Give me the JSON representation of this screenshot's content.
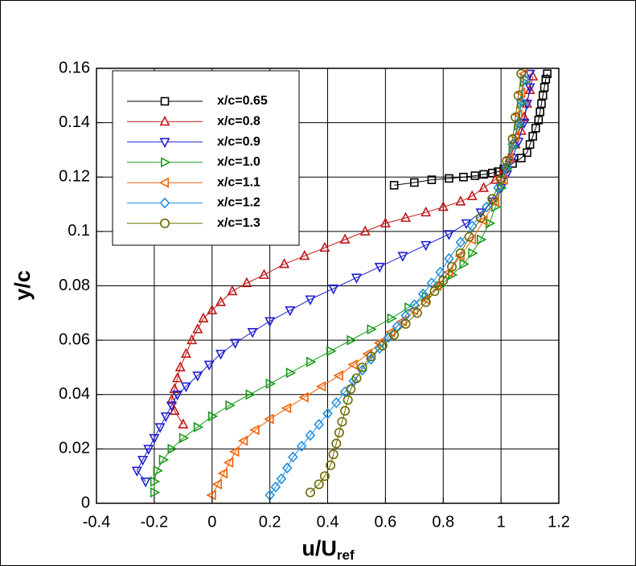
{
  "chart_data": {
    "type": "line",
    "xlabel": "u/U",
    "xlabel_sub": "ref",
    "ylabel": "y/c",
    "xlim": [
      -0.4,
      1.2
    ],
    "xticks": [
      -0.4,
      -0.2,
      0,
      0.2,
      0.4,
      0.6,
      0.8,
      1,
      1.2
    ],
    "ylim": [
      0,
      0.16
    ],
    "yticks": [
      0,
      0.02,
      0.04,
      0.06,
      0.08,
      0.1,
      0.12,
      0.14,
      0.16
    ],
    "grid": true,
    "legend": "upper left",
    "series": [
      {
        "name": "x/c=0.65",
        "color": "#000000",
        "marker": "square",
        "x": [
          0.63,
          0.7,
          0.76,
          0.82,
          0.87,
          0.91,
          0.94,
          0.97,
          0.99,
          1.01,
          1.04,
          1.07,
          1.09,
          1.1,
          1.11,
          1.12,
          1.13,
          1.135,
          1.14,
          1.145,
          1.15,
          1.155,
          1.16
        ],
        "y": [
          0.117,
          0.118,
          0.119,
          0.1195,
          0.12,
          0.1205,
          0.121,
          0.1215,
          0.122,
          0.123,
          0.125,
          0.127,
          0.129,
          0.132,
          0.135,
          0.138,
          0.141,
          0.144,
          0.147,
          0.15,
          0.153,
          0.156,
          0.158
        ]
      },
      {
        "name": "x/c=0.8",
        "color": "#c01818",
        "marker": "triangle-up",
        "x": [
          -0.1,
          -0.13,
          -0.14,
          -0.13,
          -0.12,
          -0.11,
          -0.09,
          -0.07,
          -0.05,
          -0.03,
          0.0,
          0.03,
          0.07,
          0.12,
          0.18,
          0.25,
          0.32,
          0.39,
          0.46,
          0.53,
          0.6,
          0.67,
          0.74,
          0.8,
          0.86,
          0.9,
          0.94,
          0.98,
          1.01,
          1.03,
          1.05,
          1.07,
          1.08,
          1.09,
          1.1,
          1.11
        ],
        "y": [
          0.029,
          0.034,
          0.038,
          0.042,
          0.046,
          0.05,
          0.055,
          0.06,
          0.064,
          0.068,
          0.071,
          0.074,
          0.078,
          0.081,
          0.084,
          0.088,
          0.091,
          0.094,
          0.097,
          0.1,
          0.103,
          0.105,
          0.107,
          0.109,
          0.111,
          0.113,
          0.116,
          0.119,
          0.123,
          0.127,
          0.132,
          0.137,
          0.142,
          0.147,
          0.152,
          0.157
        ]
      },
      {
        "name": "x/c=0.9",
        "color": "#2020d0",
        "marker": "triangle-down",
        "x": [
          -0.23,
          -0.26,
          -0.24,
          -0.22,
          -0.2,
          -0.18,
          -0.16,
          -0.14,
          -0.12,
          -0.09,
          -0.05,
          -0.01,
          0.03,
          0.08,
          0.14,
          0.2,
          0.27,
          0.34,
          0.42,
          0.5,
          0.58,
          0.66,
          0.74,
          0.82,
          0.88,
          0.93,
          0.97,
          1.0,
          1.02,
          1.04,
          1.06,
          1.08,
          1.09,
          1.1,
          1.1
        ],
        "y": [
          0.008,
          0.012,
          0.016,
          0.02,
          0.024,
          0.028,
          0.032,
          0.036,
          0.04,
          0.043,
          0.047,
          0.051,
          0.055,
          0.059,
          0.063,
          0.067,
          0.071,
          0.075,
          0.079,
          0.083,
          0.087,
          0.091,
          0.095,
          0.099,
          0.103,
          0.107,
          0.111,
          0.116,
          0.121,
          0.127,
          0.133,
          0.14,
          0.147,
          0.153,
          0.158
        ]
      },
      {
        "name": "x/c=1.0",
        "color": "#1a9a1a",
        "marker": "triangle-right",
        "x": [
          -0.2,
          -0.2,
          -0.19,
          -0.17,
          -0.14,
          -0.1,
          -0.05,
          0.0,
          0.06,
          0.13,
          0.2,
          0.27,
          0.34,
          0.41,
          0.48,
          0.55,
          0.62,
          0.68,
          0.74,
          0.79,
          0.83,
          0.87,
          0.9,
          0.93,
          0.96,
          0.98,
          1.0,
          1.02,
          1.04,
          1.06,
          1.07,
          1.08
        ],
        "y": [
          0.004,
          0.008,
          0.012,
          0.016,
          0.02,
          0.024,
          0.028,
          0.032,
          0.036,
          0.04,
          0.044,
          0.048,
          0.052,
          0.056,
          0.06,
          0.064,
          0.068,
          0.072,
          0.076,
          0.08,
          0.084,
          0.088,
          0.092,
          0.097,
          0.103,
          0.109,
          0.116,
          0.123,
          0.131,
          0.139,
          0.147,
          0.155
        ]
      },
      {
        "name": "x/c=1.1",
        "color": "#f06000",
        "marker": "triangle-left",
        "x": [
          0.0,
          0.02,
          0.04,
          0.06,
          0.08,
          0.11,
          0.15,
          0.2,
          0.26,
          0.32,
          0.38,
          0.44,
          0.49,
          0.54,
          0.58,
          0.62,
          0.66,
          0.7,
          0.74,
          0.78,
          0.82,
          0.86,
          0.9,
          0.94,
          0.98,
          1.01,
          1.03,
          1.05,
          1.06,
          1.07,
          1.08
        ],
        "y": [
          0.003,
          0.007,
          0.011,
          0.015,
          0.019,
          0.023,
          0.027,
          0.031,
          0.035,
          0.039,
          0.043,
          0.047,
          0.051,
          0.055,
          0.059,
          0.063,
          0.067,
          0.071,
          0.075,
          0.08,
          0.085,
          0.091,
          0.097,
          0.104,
          0.111,
          0.119,
          0.127,
          0.135,
          0.143,
          0.151,
          0.158
        ]
      },
      {
        "name": "x/c=1.2",
        "color": "#1e90e0",
        "marker": "diamond",
        "x": [
          0.2,
          0.22,
          0.24,
          0.26,
          0.28,
          0.31,
          0.34,
          0.37,
          0.4,
          0.43,
          0.46,
          0.49,
          0.52,
          0.55,
          0.58,
          0.61,
          0.64,
          0.67,
          0.7,
          0.73,
          0.76,
          0.79,
          0.82,
          0.86,
          0.9,
          0.95,
          0.99,
          1.02,
          1.04,
          1.06,
          1.07,
          1.08
        ],
        "y": [
          0.003,
          0.006,
          0.009,
          0.013,
          0.017,
          0.021,
          0.025,
          0.029,
          0.033,
          0.037,
          0.041,
          0.045,
          0.049,
          0.053,
          0.057,
          0.061,
          0.065,
          0.069,
          0.073,
          0.077,
          0.081,
          0.085,
          0.09,
          0.096,
          0.102,
          0.109,
          0.116,
          0.124,
          0.132,
          0.14,
          0.148,
          0.156
        ]
      },
      {
        "name": "x/c=1.3",
        "color": "#6b6b00",
        "marker": "circle",
        "x": [
          0.34,
          0.37,
          0.39,
          0.41,
          0.42,
          0.43,
          0.44,
          0.45,
          0.46,
          0.47,
          0.48,
          0.5,
          0.52,
          0.55,
          0.59,
          0.63,
          0.67,
          0.71,
          0.74,
          0.77,
          0.8,
          0.83,
          0.86,
          0.89,
          0.93,
          0.97,
          1.0,
          1.02,
          1.04,
          1.05,
          1.06,
          1.07
        ],
        "y": [
          0.004,
          0.007,
          0.01,
          0.014,
          0.018,
          0.022,
          0.026,
          0.03,
          0.034,
          0.038,
          0.042,
          0.046,
          0.05,
          0.054,
          0.058,
          0.062,
          0.066,
          0.07,
          0.074,
          0.078,
          0.082,
          0.087,
          0.092,
          0.098,
          0.105,
          0.112,
          0.119,
          0.126,
          0.134,
          0.142,
          0.15,
          0.158
        ]
      }
    ]
  }
}
